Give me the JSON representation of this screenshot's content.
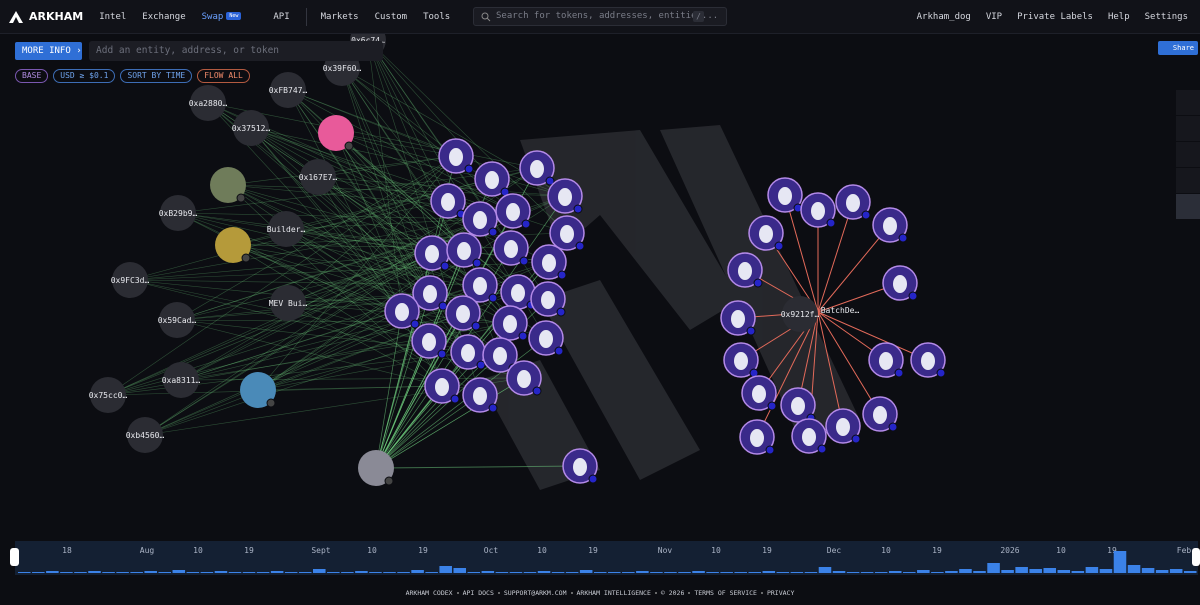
{
  "nav": {
    "brand": "ARKHAM",
    "links": [
      "Intel",
      "Exchange",
      "Swap",
      "API"
    ],
    "swap_badge": "New",
    "menus": [
      "Markets",
      "Custom",
      "Tools"
    ],
    "search_placeholder": "Search for tokens, addresses, entities...",
    "search_key": "/",
    "right": [
      "Arkham_dog",
      "VIP",
      "Private Labels",
      "Help",
      "Settings"
    ]
  },
  "toolbar": {
    "more_info": "MORE INFO",
    "input_placeholder": "Add an entity, address, or token",
    "share": "Share",
    "filters": [
      "BASE",
      "USD ≥ $0.1",
      "SORT BY TIME",
      "FLOW ALL"
    ]
  },
  "graph": {
    "nodes": [
      "0x6c74…",
      "0x39F60…",
      "0xFB747…",
      "0xa2880…",
      "0x37512…",
      "0x167E7…",
      "0xB29b9…",
      "Builder…",
      "0x9FC3d…",
      "0x59Cad…",
      "MEV Bui…",
      "0xa8311…",
      "0x75cc0…",
      "0xb4560…",
      "0x9212f…",
      "BatchDe…"
    ]
  },
  "timeline": {
    "labels": [
      "18",
      "Aug",
      "10",
      "19",
      "Sept",
      "10",
      "19",
      "Oct",
      "10",
      "19",
      "Nov",
      "10",
      "19",
      "Dec",
      "10",
      "19",
      "2026",
      "10",
      "19",
      "Feb"
    ],
    "activity": [
      1,
      1,
      2,
      1,
      1,
      2,
      1,
      1,
      1,
      2,
      1,
      3,
      1,
      1,
      2,
      1,
      1,
      1,
      2,
      1,
      1,
      4,
      1,
      1,
      2,
      1,
      1,
      1,
      3,
      1,
      7,
      5,
      1,
      2,
      1,
      1,
      1,
      2,
      1,
      1,
      3,
      1,
      1,
      1,
      2,
      1,
      1,
      1,
      2,
      1,
      1,
      1,
      1,
      2,
      1,
      1,
      1,
      6,
      2,
      1,
      1,
      1,
      2,
      1,
      3,
      1,
      2,
      4,
      2,
      10,
      3,
      6,
      4,
      5,
      3,
      2,
      6,
      4,
      22,
      8,
      5,
      3,
      4,
      2
    ]
  },
  "footer": [
    "ARKHAM CODEX",
    "API DOCS",
    "SUPPORT@ARKM.COM",
    "ARKHAM INTELLIGENCE",
    "© 2026",
    "TERMS OF SERVICE",
    "PRIVACY"
  ]
}
